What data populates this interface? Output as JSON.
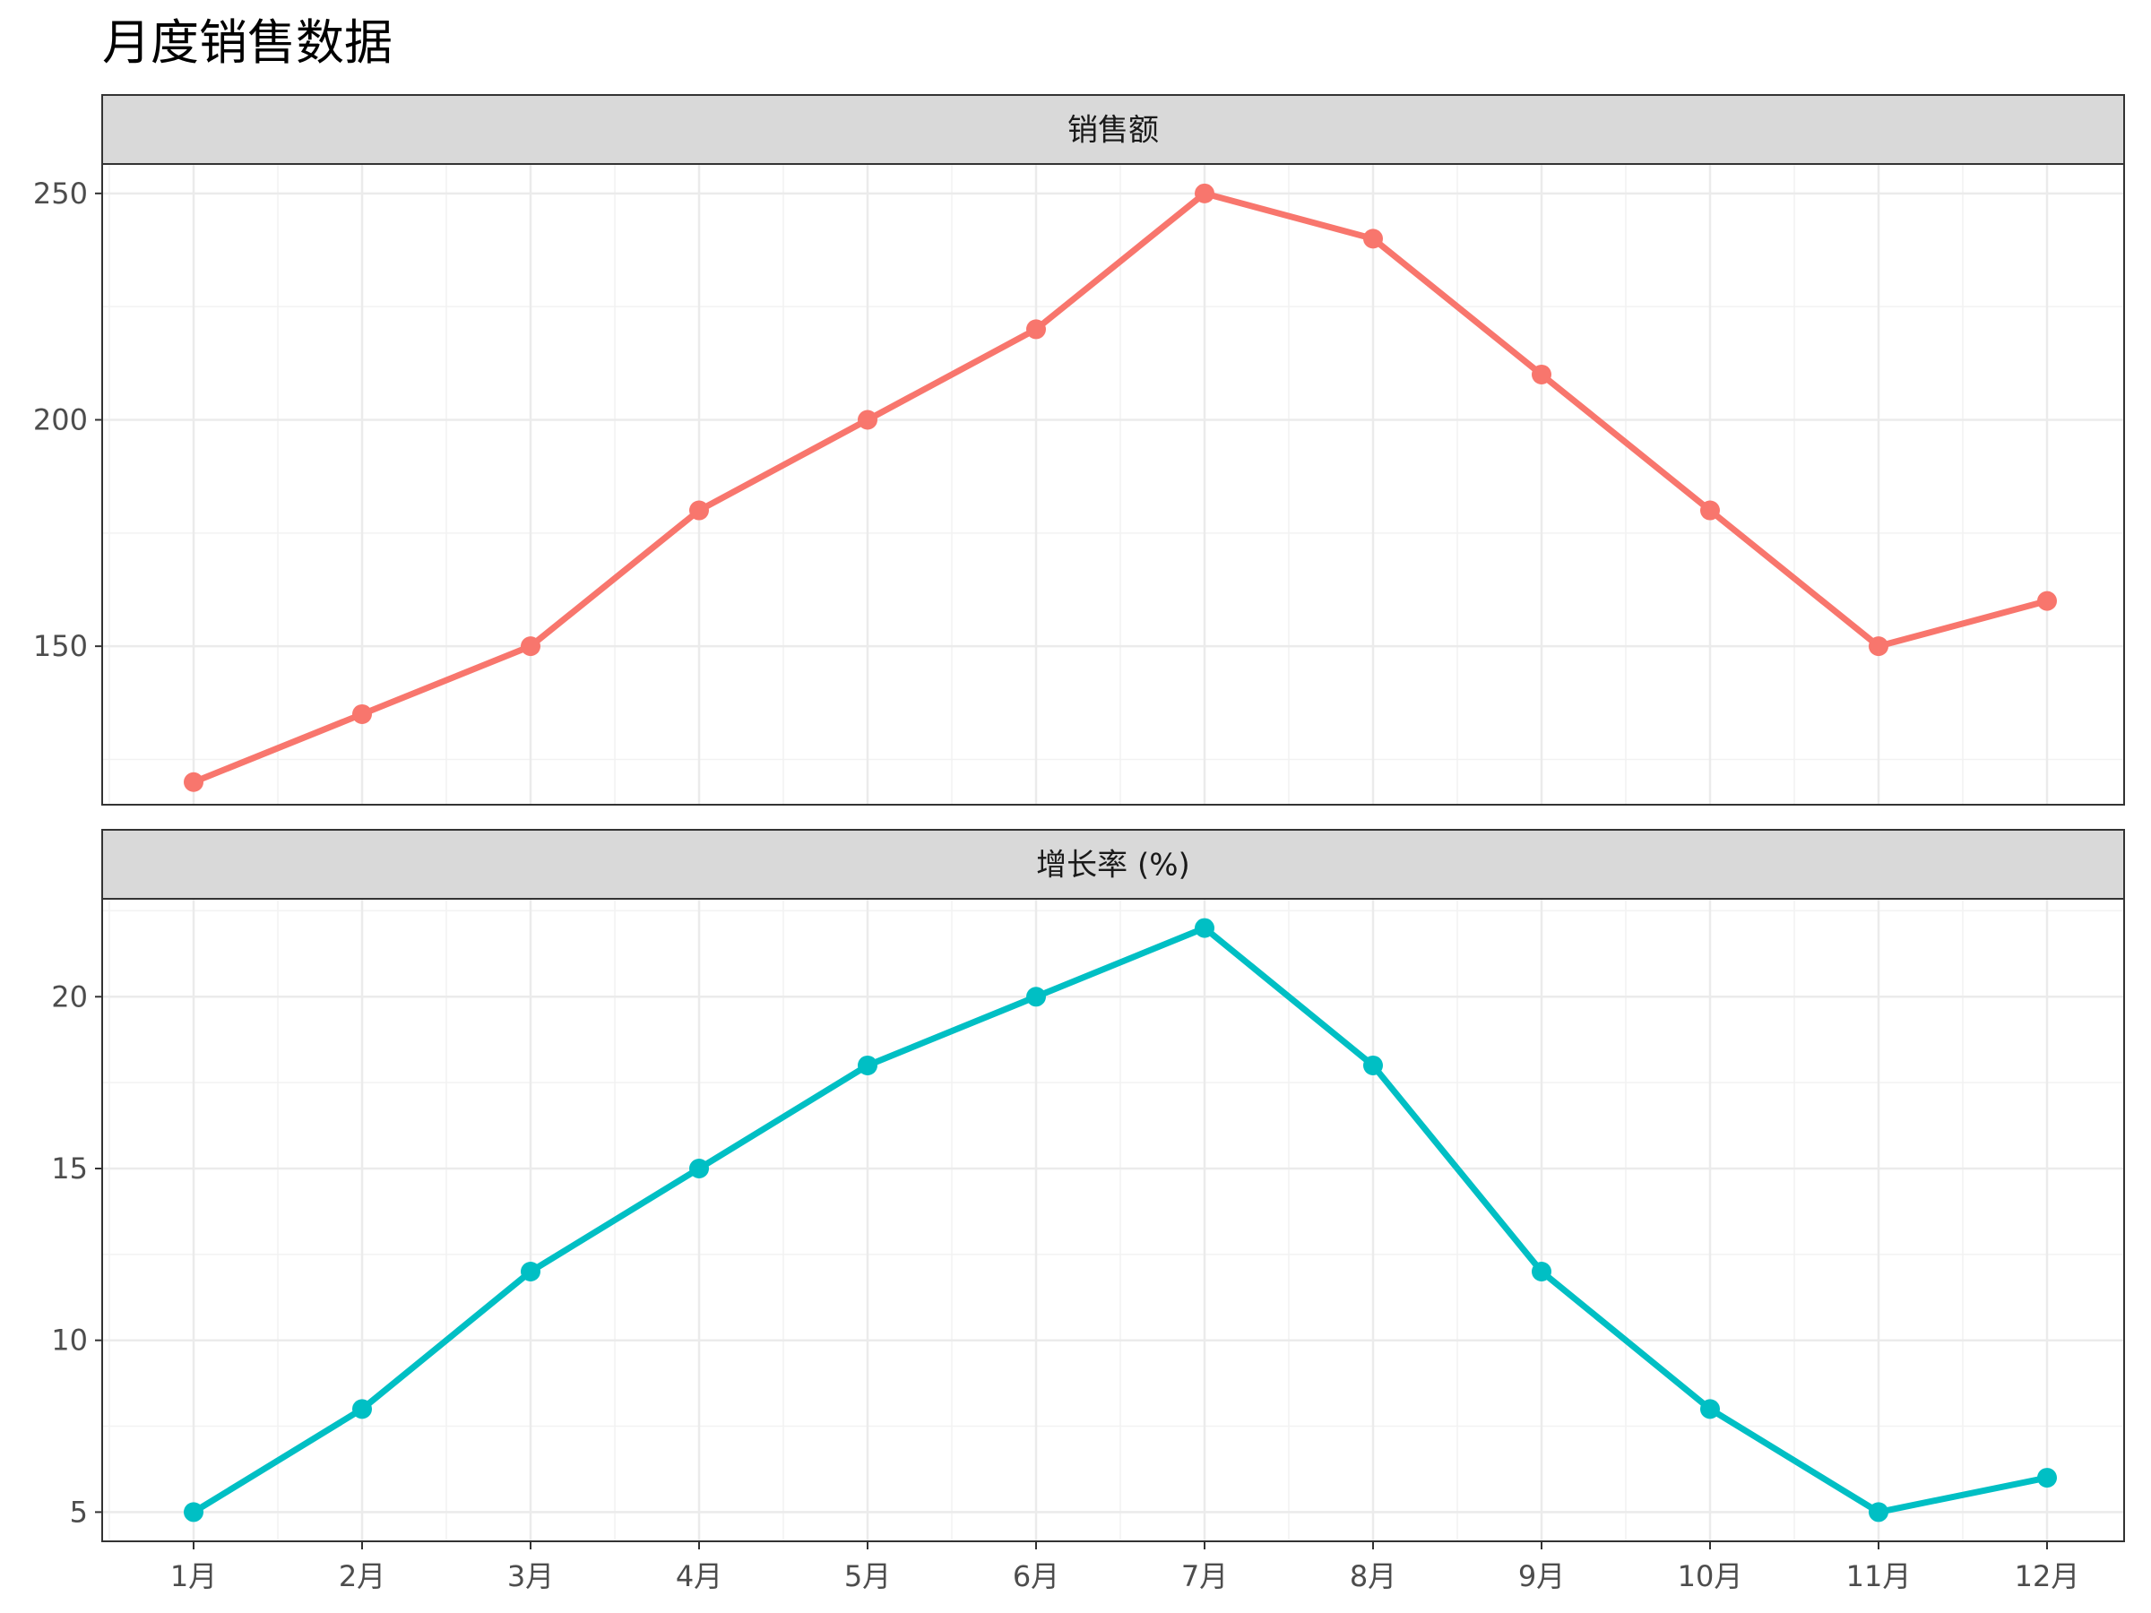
{
  "chart_data": {
    "type": "line",
    "title": "月度销售数据",
    "categories": [
      "1月",
      "2月",
      "3月",
      "4月",
      "5月",
      "6月",
      "7月",
      "8月",
      "9月",
      "10月",
      "11月",
      "12月"
    ],
    "facets": [
      {
        "strip_label": "销售额",
        "color": "#F8766D",
        "values": [
          120,
          135,
          150,
          180,
          200,
          220,
          250,
          240,
          210,
          180,
          150,
          160
        ],
        "ylim": [
          115,
          256.5
        ],
        "yticks": [
          150,
          200,
          250
        ],
        "ytick_labels": [
          "150",
          "200",
          "250"
        ]
      },
      {
        "strip_label": "增长率 (%)",
        "color": "#00BFC4",
        "values": [
          5,
          8,
          12,
          15,
          18,
          20,
          22,
          18,
          12,
          8,
          5,
          6
        ],
        "ylim": [
          4.15,
          22.85
        ],
        "yticks": [
          5,
          10,
          15,
          20
        ],
        "ytick_labels": [
          "5",
          "10",
          "15",
          "20"
        ]
      }
    ],
    "grid": true,
    "legend": "none"
  }
}
